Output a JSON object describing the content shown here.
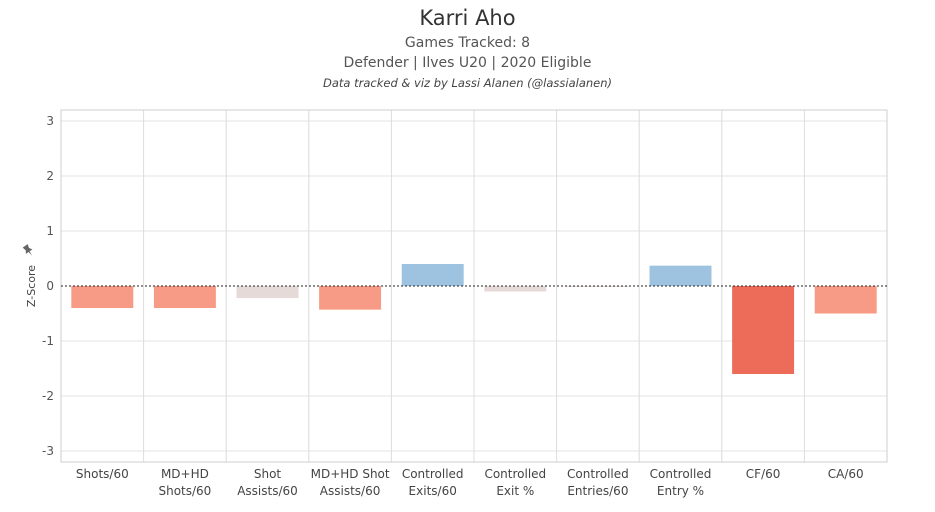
{
  "header": {
    "title": "Karri Aho",
    "subtitle": "Games Tracked: 8",
    "subtitle2": "Defender | Ilves U20 | 2020 Eligible",
    "credit": "Data tracked & viz by Lassi Alanen (@lassialanen)"
  },
  "chart_data": {
    "type": "bar",
    "title": "Karri Aho",
    "ylabel": "Z-Score",
    "xlabel": "",
    "ylim": [
      -3.2,
      3.2
    ],
    "yticks": [
      3,
      2,
      1,
      0,
      -1,
      -2,
      -3
    ],
    "grid": true,
    "categories": [
      "Shots/60",
      "MD+HD Shots/60",
      "Shot Assists/60",
      "MD+HD Shot Assists/60",
      "Controlled Exits/60",
      "Controlled Exit %",
      "Controlled Entries/60",
      "Controlled Entry %",
      "CF/60",
      "CA/60"
    ],
    "category_lines": [
      [
        "Shots/60"
      ],
      [
        "MD+HD",
        "Shots/60"
      ],
      [
        "Shot",
        "Assists/60"
      ],
      [
        "MD+HD Shot",
        "Assists/60"
      ],
      [
        "Controlled",
        "Exits/60"
      ],
      [
        "Controlled",
        "Exit %"
      ],
      [
        "Controlled",
        "Entries/60"
      ],
      [
        "Controlled",
        "Entry %"
      ],
      [
        "CF/60"
      ],
      [
        "CA/60"
      ]
    ],
    "values": [
      -0.4,
      -0.4,
      -0.22,
      -0.43,
      0.4,
      -0.1,
      0.0,
      0.37,
      -1.6,
      -0.5
    ],
    "colors": [
      "#f79b86",
      "#f79b86",
      "#e5dad8",
      "#f79b86",
      "#9dc3e0",
      "#e5dad8",
      "#e5dad8",
      "#9dc3e0",
      "#ec6b59",
      "#f79b86"
    ]
  }
}
